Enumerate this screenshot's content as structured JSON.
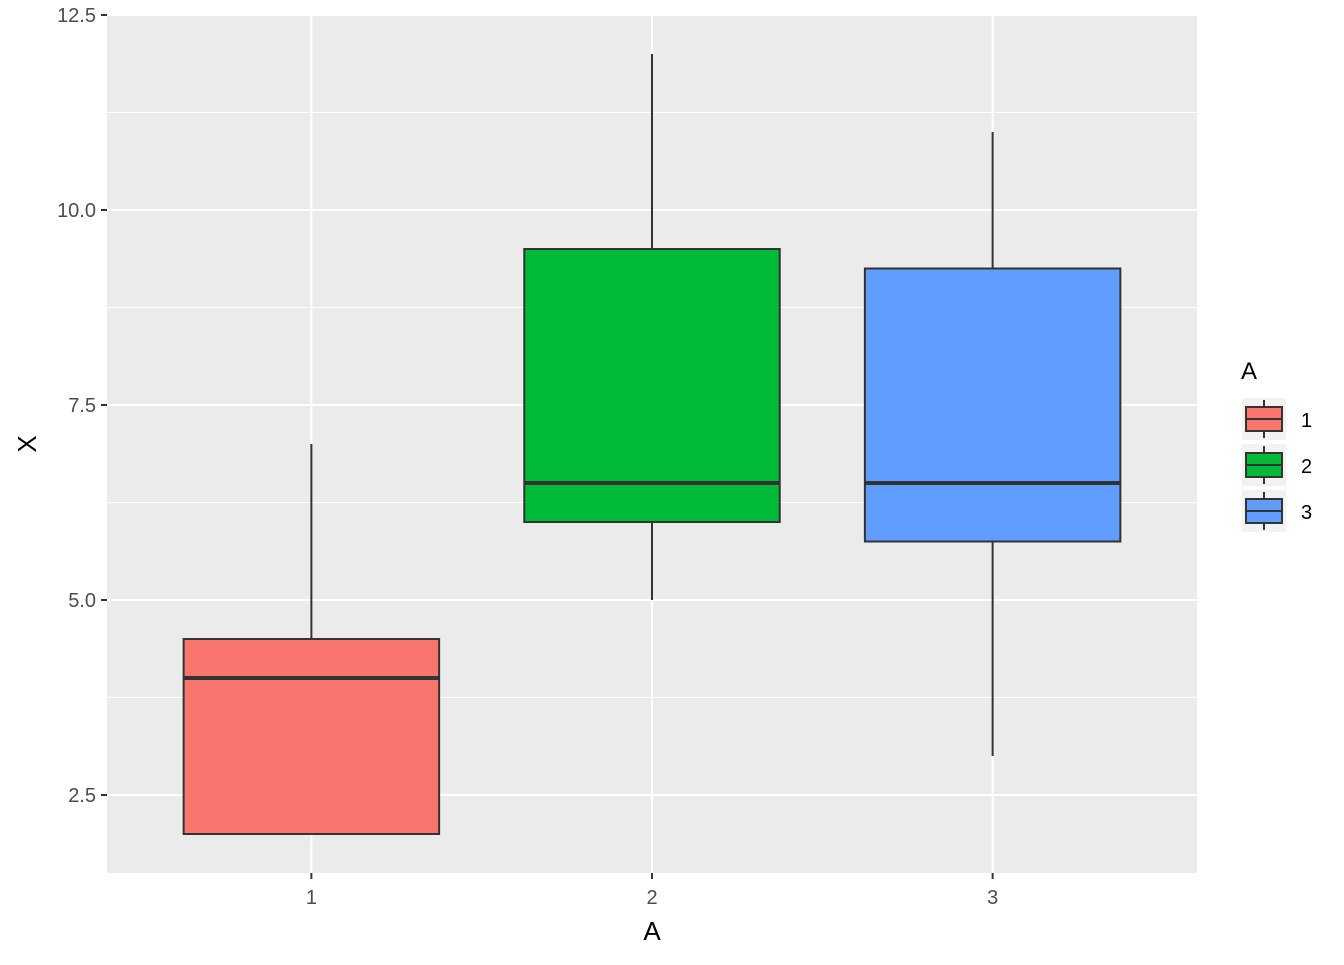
{
  "chart_data": {
    "type": "boxplot",
    "xlabel": "A",
    "ylabel": "X",
    "categories": [
      "1",
      "2",
      "3"
    ],
    "ylim": [
      1.5,
      12.5
    ],
    "yticks": [
      2.5,
      5.0,
      7.5,
      10.0,
      12.5
    ],
    "ytick_labels": [
      "2.5",
      "5.0",
      "7.5",
      "10.0",
      "12.5"
    ],
    "grid": true,
    "legend": {
      "title": "A",
      "position": "right",
      "entries": [
        "1",
        "2",
        "3"
      ]
    },
    "colors": [
      "#F8766D",
      "#00BA38",
      "#619CFF"
    ],
    "boxes": [
      {
        "category": "1",
        "min": 2.0,
        "q1": 2.0,
        "median": 4.0,
        "q3": 4.5,
        "max": 7.0
      },
      {
        "category": "2",
        "min": 5.0,
        "q1": 6.0,
        "median": 6.5,
        "q3": 9.5,
        "max": 12.0
      },
      {
        "category": "3",
        "min": 3.0,
        "q1": 5.75,
        "median": 6.5,
        "q3": 9.25,
        "max": 11.0
      }
    ]
  }
}
